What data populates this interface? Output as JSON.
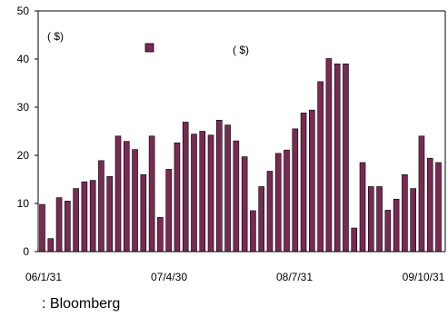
{
  "chart_data": {
    "type": "bar",
    "x_tick_labels": [
      "06/1/31",
      "07/4/30",
      "08/7/31",
      "09/10/31"
    ],
    "y_tick_labels": [
      "0",
      "10",
      "20",
      "30",
      "40",
      "50"
    ],
    "ylim": [
      0,
      50
    ],
    "grid": false,
    "legend": "top-center",
    "bar_color": "#7a2a52",
    "annotations": {
      "y_unit": "(      $)",
      "legend_unit": "(      $)"
    },
    "series": [
      {
        "values": [
          9.8,
          2.7,
          11.2,
          10.5,
          13.1,
          14.5,
          14.8,
          18.9,
          15.6,
          24,
          22.9,
          21.2,
          16,
          24,
          7.1,
          17.1,
          22.6,
          26.9,
          24.4,
          25,
          24.2,
          27.3,
          26.3,
          23,
          19.7,
          8.5,
          13.5,
          16.7,
          20.4,
          21.1,
          25.5,
          28.8,
          29.4,
          35.3,
          40.1,
          39,
          39,
          4.9,
          18.5,
          13.5,
          13.5,
          8.6,
          10.9,
          16,
          13.1,
          24,
          19.4,
          18.5
        ]
      }
    ]
  },
  "source_text": ": Bloomberg"
}
